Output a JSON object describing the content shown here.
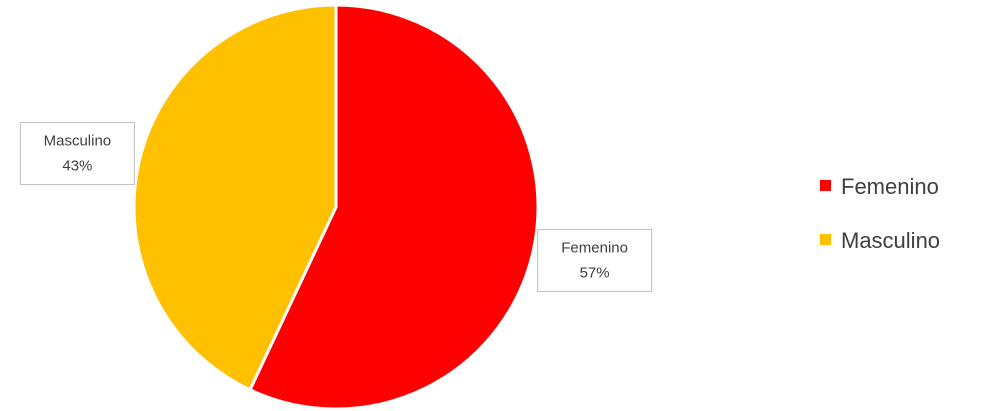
{
  "chart_data": {
    "type": "pie",
    "categories": [
      "Femenino",
      "Masculino"
    ],
    "values": [
      57,
      43
    ],
    "value_labels": [
      "57%",
      "43%"
    ],
    "colors": [
      "#ff0000",
      "#ffc000"
    ],
    "legend": "right"
  }
}
